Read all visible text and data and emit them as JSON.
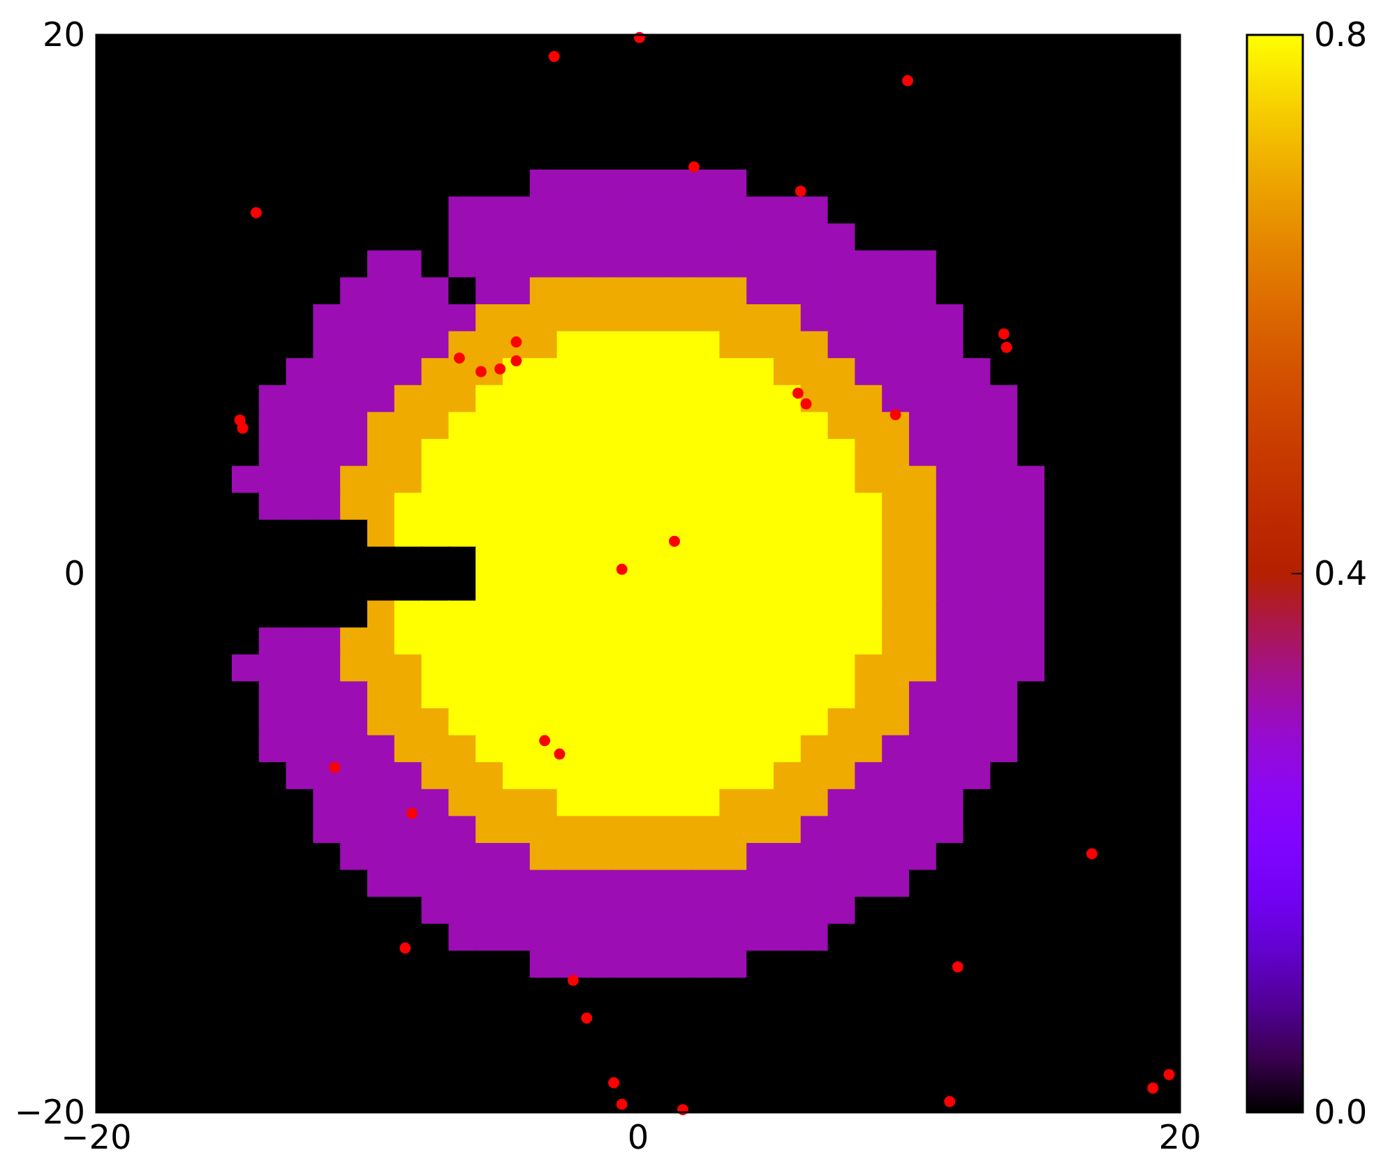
{
  "chart_data": [
    {
      "type": "heatmap",
      "xlim": [
        -20,
        20
      ],
      "ylim": [
        -20,
        20
      ],
      "xticks": [
        {
          "value": -20,
          "label": "−20"
        },
        0,
        20
      ],
      "yticks": [
        {
          "value": -20,
          "label": "−20"
        },
        0,
        20
      ],
      "clim": [
        0,
        0.8
      ],
      "cticks": [
        {
          "value": 0,
          "label": "0.0"
        },
        0.4,
        0.8
      ],
      "cells": [
        [
          0,
          0,
          0,
          0,
          0,
          0,
          0,
          0,
          0,
          0,
          0,
          0,
          0,
          0,
          0,
          0,
          0,
          0,
          0,
          0,
          0,
          0,
          0,
          0,
          0,
          0,
          0,
          0,
          0,
          0,
          0,
          0,
          0,
          0,
          0,
          0,
          0,
          0,
          0,
          0
        ],
        [
          0,
          0,
          0,
          0,
          0,
          0,
          0,
          0,
          0,
          0,
          0,
          0,
          0,
          0,
          0,
          0,
          0,
          0,
          0,
          0,
          0,
          0,
          0,
          0,
          0,
          0,
          0,
          0,
          0,
          0,
          0,
          0,
          0,
          0,
          0,
          0,
          0,
          0,
          0,
          0
        ],
        [
          0,
          0,
          0,
          0,
          0,
          0,
          0,
          0,
          0,
          0,
          0,
          0,
          0,
          0,
          0,
          0,
          0,
          0,
          0,
          0,
          0,
          0,
          0,
          0,
          0,
          0,
          0,
          0,
          0,
          0,
          0,
          0,
          0,
          0,
          0,
          0,
          0,
          0,
          0,
          0
        ],
        [
          0,
          0,
          0,
          0,
          0,
          0,
          0,
          0,
          0,
          0,
          0,
          0,
          0,
          0,
          0,
          0,
          0,
          0,
          0,
          0,
          0,
          0,
          0,
          0,
          0,
          0,
          0,
          0,
          0,
          0,
          0,
          0,
          0,
          0,
          0,
          0,
          0,
          0,
          0,
          0
        ],
        [
          0,
          0,
          0,
          0,
          0,
          0,
          0,
          0,
          0,
          0,
          0,
          0,
          0,
          0,
          0,
          0,
          0,
          0,
          0,
          0,
          0,
          0,
          0,
          0,
          0,
          0,
          0,
          0,
          0,
          0,
          0,
          0,
          0,
          0,
          0,
          0,
          0,
          0,
          0,
          0
        ],
        [
          0,
          0,
          0,
          0,
          0,
          0,
          0,
          0,
          0,
          0,
          0,
          0,
          0,
          0,
          0,
          0,
          0.3,
          0.3,
          0.3,
          0.3,
          0.3,
          0.3,
          0.3,
          0.3,
          0,
          0,
          0,
          0,
          0,
          0,
          0,
          0,
          0,
          0,
          0,
          0,
          0,
          0,
          0,
          0
        ],
        [
          0,
          0,
          0,
          0,
          0,
          0,
          0,
          0,
          0,
          0,
          0,
          0,
          0,
          0.3,
          0.3,
          0.3,
          0.3,
          0.3,
          0.3,
          0.3,
          0.3,
          0.3,
          0.3,
          0.3,
          0.3,
          0.3,
          0.3,
          0,
          0,
          0,
          0,
          0,
          0,
          0,
          0,
          0,
          0,
          0,
          0,
          0
        ],
        [
          0,
          0,
          0,
          0,
          0,
          0,
          0,
          0,
          0,
          0,
          0,
          0,
          0,
          0.3,
          0.3,
          0.3,
          0.3,
          0.3,
          0.3,
          0.3,
          0.3,
          0.3,
          0.3,
          0.3,
          0.3,
          0.3,
          0.3,
          0.3,
          0,
          0,
          0,
          0,
          0,
          0,
          0,
          0,
          0,
          0,
          0,
          0
        ],
        [
          0,
          0,
          0,
          0,
          0,
          0,
          0,
          0,
          0,
          0,
          0.3,
          0.3,
          0,
          0.3,
          0.3,
          0.3,
          0.3,
          0.3,
          0.3,
          0.3,
          0.3,
          0.3,
          0.3,
          0.3,
          0.3,
          0.3,
          0.3,
          0.3,
          0.3,
          0.3,
          0.3,
          0,
          0,
          0,
          0,
          0,
          0,
          0,
          0,
          0
        ],
        [
          0,
          0,
          0,
          0,
          0,
          0,
          0,
          0,
          0,
          0.3,
          0.3,
          0.3,
          0.3,
          0,
          0.3,
          0.3,
          0.7,
          0.7,
          0.7,
          0.7,
          0.7,
          0.7,
          0.7,
          0.7,
          0.3,
          0.3,
          0.3,
          0.3,
          0.3,
          0.3,
          0.3,
          0,
          0,
          0,
          0,
          0,
          0,
          0,
          0,
          0
        ],
        [
          0,
          0,
          0,
          0,
          0,
          0,
          0,
          0,
          0.3,
          0.3,
          0.3,
          0.3,
          0.3,
          0.3,
          0.7,
          0.7,
          0.7,
          0.7,
          0.7,
          0.7,
          0.7,
          0.7,
          0.7,
          0.7,
          0.7,
          0.7,
          0.3,
          0.3,
          0.3,
          0.3,
          0.3,
          0.3,
          0,
          0,
          0,
          0,
          0,
          0,
          0,
          0
        ],
        [
          0,
          0,
          0,
          0,
          0,
          0,
          0,
          0,
          0.3,
          0.3,
          0.3,
          0.3,
          0.3,
          0.7,
          0.7,
          0.7,
          0.7,
          0.8,
          0.8,
          0.8,
          0.8,
          0.8,
          0.8,
          0.7,
          0.7,
          0.7,
          0.7,
          0.3,
          0.3,
          0.3,
          0.3,
          0.3,
          0,
          0,
          0,
          0,
          0,
          0,
          0,
          0
        ],
        [
          0,
          0,
          0,
          0,
          0,
          0,
          0,
          0.3,
          0.3,
          0.3,
          0.3,
          0.3,
          0.7,
          0.7,
          0.7,
          0.8,
          0.8,
          0.8,
          0.8,
          0.8,
          0.8,
          0.8,
          0.8,
          0.8,
          0.8,
          0.7,
          0.7,
          0.7,
          0.3,
          0.3,
          0.3,
          0.3,
          0.3,
          0,
          0,
          0,
          0,
          0,
          0,
          0
        ],
        [
          0,
          0,
          0,
          0,
          0,
          0,
          0.3,
          0.3,
          0.3,
          0.3,
          0.3,
          0.7,
          0.7,
          0.7,
          0.8,
          0.8,
          0.8,
          0.8,
          0.8,
          0.8,
          0.8,
          0.8,
          0.8,
          0.8,
          0.8,
          0.8,
          0.7,
          0.7,
          0.7,
          0.3,
          0.3,
          0.3,
          0.3,
          0.3,
          0,
          0,
          0,
          0,
          0,
          0
        ],
        [
          0,
          0,
          0,
          0,
          0,
          0,
          0.3,
          0.3,
          0.3,
          0.3,
          0.7,
          0.7,
          0.7,
          0.8,
          0.8,
          0.8,
          0.8,
          0.8,
          0.8,
          0.8,
          0.8,
          0.8,
          0.8,
          0.8,
          0.8,
          0.8,
          0.8,
          0.7,
          0.7,
          0.7,
          0.3,
          0.3,
          0.3,
          0.3,
          0,
          0,
          0,
          0,
          0,
          0
        ],
        [
          0,
          0,
          0,
          0,
          0,
          0,
          0.3,
          0.3,
          0.3,
          0.3,
          0.7,
          0.7,
          0.8,
          0.8,
          0.8,
          0.8,
          0.8,
          0.8,
          0.8,
          0.8,
          0.8,
          0.8,
          0.8,
          0.8,
          0.8,
          0.8,
          0.8,
          0.8,
          0.7,
          0.7,
          0.3,
          0.3,
          0.3,
          0.3,
          0,
          0,
          0,
          0,
          0,
          0
        ],
        [
          0,
          0,
          0,
          0,
          0,
          0.3,
          0.3,
          0.3,
          0.3,
          0.7,
          0.7,
          0.7,
          0.8,
          0.8,
          0.8,
          0.8,
          0.8,
          0.8,
          0.8,
          0.8,
          0.8,
          0.8,
          0.8,
          0.8,
          0.8,
          0.8,
          0.8,
          0.8,
          0.7,
          0.7,
          0.7,
          0.3,
          0.3,
          0.3,
          0.3,
          0,
          0,
          0,
          0,
          0
        ],
        [
          0,
          0,
          0,
          0,
          0,
          0,
          0.3,
          0.3,
          0.3,
          0.7,
          0.7,
          0.8,
          0.8,
          0.8,
          0.8,
          0.8,
          0.8,
          0.8,
          0.8,
          0.8,
          0.8,
          0.8,
          0.8,
          0.8,
          0.8,
          0.8,
          0.8,
          0.8,
          0.8,
          0.7,
          0.7,
          0.3,
          0.3,
          0.3,
          0.3,
          0,
          0,
          0,
          0,
          0
        ],
        [
          0,
          0,
          0,
          0,
          0,
          0,
          0,
          0,
          0,
          0,
          0.7,
          0.8,
          0.8,
          0.8,
          0.8,
          0.8,
          0.8,
          0.8,
          0.8,
          0.8,
          0.8,
          0.8,
          0.8,
          0.8,
          0.8,
          0.8,
          0.8,
          0.8,
          0.8,
          0.7,
          0.7,
          0.3,
          0.3,
          0.3,
          0.3,
          0,
          0,
          0,
          0,
          0
        ],
        [
          0,
          0,
          0,
          0,
          0,
          0,
          0,
          0,
          0,
          0,
          0,
          0,
          0,
          0,
          0.8,
          0.8,
          0.8,
          0.8,
          0.8,
          0.8,
          0.8,
          0.8,
          0.8,
          0.8,
          0.8,
          0.8,
          0.8,
          0.8,
          0.8,
          0.7,
          0.7,
          0.3,
          0.3,
          0.3,
          0.3,
          0,
          0,
          0,
          0,
          0
        ],
        [
          0,
          0,
          0,
          0,
          0,
          0,
          0,
          0,
          0,
          0,
          0,
          0,
          0,
          0,
          0.8,
          0.8,
          0.8,
          0.8,
          0.8,
          0.8,
          0.8,
          0.8,
          0.8,
          0.8,
          0.8,
          0.8,
          0.8,
          0.8,
          0.8,
          0.7,
          0.7,
          0.3,
          0.3,
          0.3,
          0.3,
          0,
          0,
          0,
          0,
          0
        ],
        [
          0,
          0,
          0,
          0,
          0,
          0,
          0,
          0,
          0,
          0,
          0.7,
          0.8,
          0.8,
          0.8,
          0.8,
          0.8,
          0.8,
          0.8,
          0.8,
          0.8,
          0.8,
          0.8,
          0.8,
          0.8,
          0.8,
          0.8,
          0.8,
          0.8,
          0.8,
          0.7,
          0.7,
          0.3,
          0.3,
          0.3,
          0.3,
          0,
          0,
          0,
          0,
          0
        ],
        [
          0,
          0,
          0,
          0,
          0,
          0,
          0.3,
          0.3,
          0.3,
          0.7,
          0.7,
          0.8,
          0.8,
          0.8,
          0.8,
          0.8,
          0.8,
          0.8,
          0.8,
          0.8,
          0.8,
          0.8,
          0.8,
          0.8,
          0.8,
          0.8,
          0.8,
          0.8,
          0.8,
          0.7,
          0.7,
          0.3,
          0.3,
          0.3,
          0.3,
          0,
          0,
          0,
          0,
          0
        ],
        [
          0,
          0,
          0,
          0,
          0,
          0.3,
          0.3,
          0.3,
          0.3,
          0.7,
          0.7,
          0.7,
          0.8,
          0.8,
          0.8,
          0.8,
          0.8,
          0.8,
          0.8,
          0.8,
          0.8,
          0.8,
          0.8,
          0.8,
          0.8,
          0.8,
          0.8,
          0.8,
          0.7,
          0.7,
          0.7,
          0.3,
          0.3,
          0.3,
          0.3,
          0,
          0,
          0,
          0,
          0
        ],
        [
          0,
          0,
          0,
          0,
          0,
          0,
          0.3,
          0.3,
          0.3,
          0.3,
          0.7,
          0.7,
          0.8,
          0.8,
          0.8,
          0.8,
          0.8,
          0.8,
          0.8,
          0.8,
          0.8,
          0.8,
          0.8,
          0.8,
          0.8,
          0.8,
          0.8,
          0.8,
          0.7,
          0.7,
          0.3,
          0.3,
          0.3,
          0.3,
          0,
          0,
          0,
          0,
          0,
          0
        ],
        [
          0,
          0,
          0,
          0,
          0,
          0,
          0.3,
          0.3,
          0.3,
          0.3,
          0.7,
          0.7,
          0.7,
          0.8,
          0.8,
          0.8,
          0.8,
          0.8,
          0.8,
          0.8,
          0.8,
          0.8,
          0.8,
          0.8,
          0.8,
          0.8,
          0.8,
          0.7,
          0.7,
          0.7,
          0.3,
          0.3,
          0.3,
          0.3,
          0,
          0,
          0,
          0,
          0,
          0
        ],
        [
          0,
          0,
          0,
          0,
          0,
          0,
          0.3,
          0.3,
          0.3,
          0.3,
          0.3,
          0.7,
          0.7,
          0.7,
          0.8,
          0.8,
          0.8,
          0.8,
          0.8,
          0.8,
          0.8,
          0.8,
          0.8,
          0.8,
          0.8,
          0.8,
          0.7,
          0.7,
          0.7,
          0.3,
          0.3,
          0.3,
          0.3,
          0.3,
          0,
          0,
          0,
          0,
          0,
          0
        ],
        [
          0,
          0,
          0,
          0,
          0,
          0,
          0,
          0.3,
          0.3,
          0.3,
          0.3,
          0.3,
          0.7,
          0.7,
          0.7,
          0.8,
          0.8,
          0.8,
          0.8,
          0.8,
          0.8,
          0.8,
          0.8,
          0.8,
          0.8,
          0.7,
          0.7,
          0.7,
          0.3,
          0.3,
          0.3,
          0.3,
          0.3,
          0,
          0,
          0,
          0,
          0,
          0,
          0
        ],
        [
          0,
          0,
          0,
          0,
          0,
          0,
          0,
          0,
          0.3,
          0.3,
          0.3,
          0.3,
          0.3,
          0.7,
          0.7,
          0.7,
          0.7,
          0.8,
          0.8,
          0.8,
          0.8,
          0.8,
          0.8,
          0.7,
          0.7,
          0.7,
          0.7,
          0.3,
          0.3,
          0.3,
          0.3,
          0.3,
          0,
          0,
          0,
          0,
          0,
          0,
          0,
          0
        ],
        [
          0,
          0,
          0,
          0,
          0,
          0,
          0,
          0,
          0.3,
          0.3,
          0.3,
          0.3,
          0.3,
          0.3,
          0.7,
          0.7,
          0.7,
          0.7,
          0.7,
          0.7,
          0.7,
          0.7,
          0.7,
          0.7,
          0.7,
          0.7,
          0.3,
          0.3,
          0.3,
          0.3,
          0.3,
          0.3,
          0,
          0,
          0,
          0,
          0,
          0,
          0,
          0
        ],
        [
          0,
          0,
          0,
          0,
          0,
          0,
          0,
          0,
          0,
          0.3,
          0.3,
          0.3,
          0.3,
          0.3,
          0.3,
          0.3,
          0.7,
          0.7,
          0.7,
          0.7,
          0.7,
          0.7,
          0.7,
          0.7,
          0.3,
          0.3,
          0.3,
          0.3,
          0.3,
          0.3,
          0.3,
          0,
          0,
          0,
          0,
          0,
          0,
          0,
          0,
          0
        ],
        [
          0,
          0,
          0,
          0,
          0,
          0,
          0,
          0,
          0,
          0,
          0.3,
          0.3,
          0.3,
          0.3,
          0.3,
          0.3,
          0.3,
          0.3,
          0.3,
          0.3,
          0.3,
          0.3,
          0.3,
          0.3,
          0.3,
          0.3,
          0.3,
          0.3,
          0.3,
          0.3,
          0,
          0,
          0,
          0,
          0,
          0,
          0,
          0,
          0,
          0
        ],
        [
          0,
          0,
          0,
          0,
          0,
          0,
          0,
          0,
          0,
          0,
          0,
          0,
          0.3,
          0.3,
          0.3,
          0.3,
          0.3,
          0.3,
          0.3,
          0.3,
          0.3,
          0.3,
          0.3,
          0.3,
          0.3,
          0.3,
          0.3,
          0.3,
          0,
          0,
          0,
          0,
          0,
          0,
          0,
          0,
          0,
          0,
          0,
          0
        ],
        [
          0,
          0,
          0,
          0,
          0,
          0,
          0,
          0,
          0,
          0,
          0,
          0,
          0,
          0.3,
          0.3,
          0.3,
          0.3,
          0.3,
          0.3,
          0.3,
          0.3,
          0.3,
          0.3,
          0.3,
          0.3,
          0.3,
          0.3,
          0,
          0,
          0,
          0,
          0,
          0,
          0,
          0,
          0,
          0,
          0,
          0,
          0
        ],
        [
          0,
          0,
          0,
          0,
          0,
          0,
          0,
          0,
          0,
          0,
          0,
          0,
          0,
          0,
          0,
          0,
          0.3,
          0.3,
          0.3,
          0.3,
          0.3,
          0.3,
          0.3,
          0.3,
          0,
          0,
          0,
          0,
          0,
          0,
          0,
          0,
          0,
          0,
          0,
          0,
          0,
          0,
          0,
          0
        ],
        [
          0,
          0,
          0,
          0,
          0,
          0,
          0,
          0,
          0,
          0,
          0,
          0,
          0,
          0,
          0,
          0,
          0,
          0,
          0,
          0,
          0,
          0,
          0,
          0,
          0,
          0,
          0,
          0,
          0,
          0,
          0,
          0,
          0,
          0,
          0,
          0,
          0,
          0,
          0,
          0
        ],
        [
          0,
          0,
          0,
          0,
          0,
          0,
          0,
          0,
          0,
          0,
          0,
          0,
          0,
          0,
          0,
          0,
          0,
          0,
          0,
          0,
          0,
          0,
          0,
          0,
          0,
          0,
          0,
          0,
          0,
          0,
          0,
          0,
          0,
          0,
          0,
          0,
          0,
          0,
          0,
          0
        ],
        [
          0,
          0,
          0,
          0,
          0,
          0,
          0,
          0,
          0,
          0,
          0,
          0,
          0,
          0,
          0,
          0,
          0,
          0,
          0,
          0,
          0,
          0,
          0,
          0,
          0,
          0,
          0,
          0,
          0,
          0,
          0,
          0,
          0,
          0,
          0,
          0,
          0,
          0,
          0,
          0
        ],
        [
          0,
          0,
          0,
          0,
          0,
          0,
          0,
          0,
          0,
          0,
          0,
          0,
          0,
          0,
          0,
          0,
          0,
          0,
          0,
          0,
          0,
          0,
          0,
          0,
          0,
          0,
          0,
          0,
          0,
          0,
          0,
          0,
          0,
          0,
          0,
          0,
          0,
          0,
          0,
          0
        ],
        [
          0,
          0,
          0,
          0,
          0,
          0,
          0,
          0,
          0,
          0,
          0,
          0,
          0,
          0,
          0,
          0,
          0,
          0,
          0,
          0,
          0,
          0,
          0,
          0,
          0,
          0,
          0,
          0,
          0,
          0,
          0,
          0,
          0,
          0,
          0,
          0,
          0,
          0,
          0,
          0
        ]
      ],
      "series": [
        {
          "type": "scatter",
          "color": "#ff0000",
          "x": [
            0.05,
            -3.1,
            9.95,
            -14.1,
            2.06,
            6.0,
            13.5,
            13.6,
            -14.7,
            -14.6,
            -6.6,
            -5.8,
            -5.1,
            -4.5,
            -4.5,
            5.9,
            6.2,
            9.5,
            1.34,
            -0.6,
            -3.45,
            -2.9,
            -11.2,
            -8.35,
            16.75,
            -8.6,
            11.8,
            -2.4,
            -1.9,
            -0.9,
            -0.6,
            1.65,
            11.5,
            19.0,
            19.6
          ],
          "values": [
            19.9,
            19.2,
            18.3,
            13.4,
            15.1,
            14.2,
            8.9,
            8.4,
            5.7,
            5.4,
            8.0,
            7.5,
            7.6,
            8.6,
            7.9,
            6.7,
            6.3,
            5.9,
            1.2,
            0.16,
            -6.2,
            -6.7,
            -7.2,
            -8.9,
            -10.4,
            -13.9,
            -14.6,
            -15.1,
            -16.5,
            -18.9,
            -19.7,
            -19.9,
            -19.6,
            -19.1,
            -18.6
          ]
        }
      ],
      "marker": "circle"
    }
  ]
}
